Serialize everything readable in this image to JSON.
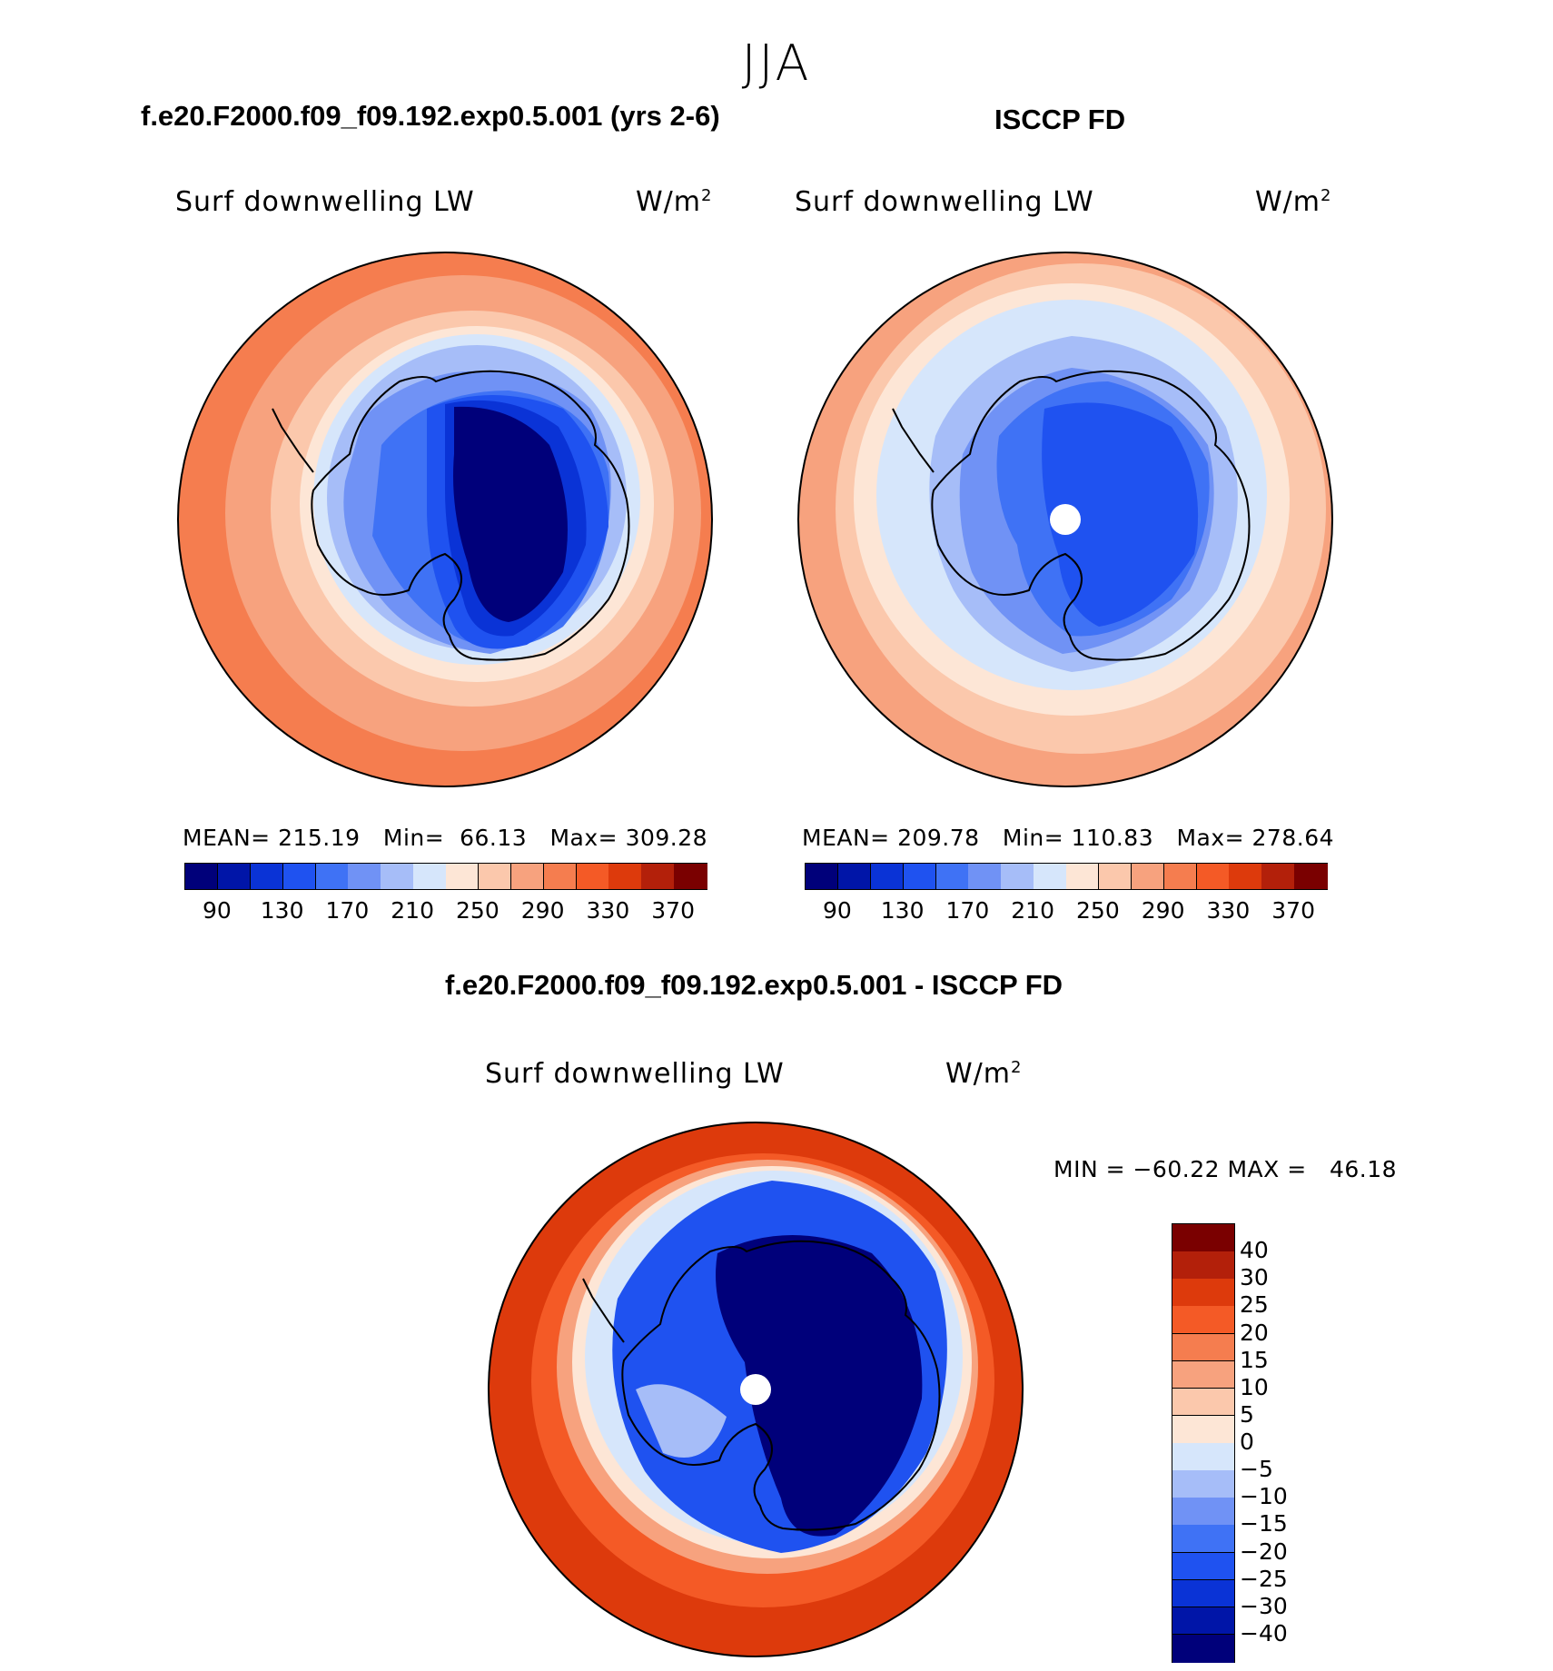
{
  "season": "JJA",
  "panels": {
    "model": {
      "title": "f.e20.F2000.f09_f09.192.exp0.5.001 (yrs 2-6)",
      "variable": "Surf downwelling LW",
      "units": "W/m",
      "units_sup": "2",
      "stats": "MEAN= 215.19   Min=  66.13   Max= 309.28"
    },
    "obs": {
      "title": "ISCCP FD",
      "variable": "Surf downwelling LW",
      "units": "W/m",
      "units_sup": "2",
      "stats": "MEAN= 209.78   Min= 110.83   Max= 278.64"
    },
    "diff": {
      "title": "f.e20.F2000.f09_f09.192.exp0.5.001 - ISCCP FD",
      "variable": "Surf downwelling LW",
      "units": "W/m",
      "units_sup": "2",
      "stats": "MIN = −60.22 MAX =   46.18"
    }
  },
  "colorbar_abs": {
    "colors": [
      "#00007a",
      "#0015a8",
      "#0a33d6",
      "#1f52f0",
      "#3f72f5",
      "#7092f5",
      "#a6bdf8",
      "#d6e6fb",
      "#fde6d6",
      "#fbc8ac",
      "#f7a27e",
      "#f57d4f",
      "#f45a26",
      "#dd3a0c",
      "#b3200a",
      "#7a0000"
    ],
    "ticks": [
      "90",
      "130",
      "170",
      "210",
      "250",
      "290",
      "330",
      "370"
    ]
  },
  "colorbar_diff": {
    "colors": [
      "#00007a",
      "#0015a8",
      "#0a33d6",
      "#1f52f0",
      "#3f72f5",
      "#7092f5",
      "#a6bdf8",
      "#d6e6fb",
      "#fde6d6",
      "#fbc8ac",
      "#f7a27e",
      "#f57d4f",
      "#f45a26",
      "#dd3a0c",
      "#b3200a",
      "#7a0000"
    ],
    "ticks": [
      "40",
      "30",
      "25",
      "20",
      "15",
      "10",
      "5",
      "0",
      "−5",
      "−10",
      "−15",
      "−20",
      "−25",
      "−30",
      "−40"
    ]
  },
  "chart_data": [
    {
      "type": "heatmap",
      "title": "f.e20.F2000.f09_f09.192.exp0.5.001 (yrs 2-6)",
      "variable": "Surf downwelling LW",
      "units": "W/m2",
      "projection": "south polar stereographic",
      "mean": 215.19,
      "min": 66.13,
      "max": 309.28,
      "levels": [
        90,
        100,
        110,
        120,
        130,
        140,
        150,
        160,
        170,
        180,
        190,
        200,
        210,
        220,
        230,
        240,
        250,
        260,
        270,
        280,
        290,
        300,
        310,
        320,
        330,
        340,
        350,
        360,
        370
      ],
      "colorbar_ticks": [
        90,
        130,
        170,
        210,
        250,
        290,
        330,
        370
      ]
    },
    {
      "type": "heatmap",
      "title": "ISCCP FD",
      "variable": "Surf downwelling LW",
      "units": "W/m2",
      "projection": "south polar stereographic",
      "mean": 209.78,
      "min": 110.83,
      "max": 278.64,
      "colorbar_ticks": [
        90,
        130,
        170,
        210,
        250,
        290,
        330,
        370
      ]
    },
    {
      "type": "heatmap",
      "title": "f.e20.F2000.f09_f09.192.exp0.5.001 - ISCCP FD",
      "variable": "Surf downwelling LW",
      "units": "W/m2",
      "projection": "south polar stereographic",
      "min": -60.22,
      "max": 46.18,
      "colorbar_ticks": [
        -40,
        -30,
        -25,
        -20,
        -15,
        -10,
        -5,
        0,
        5,
        10,
        15,
        20,
        25,
        30,
        40
      ]
    }
  ]
}
